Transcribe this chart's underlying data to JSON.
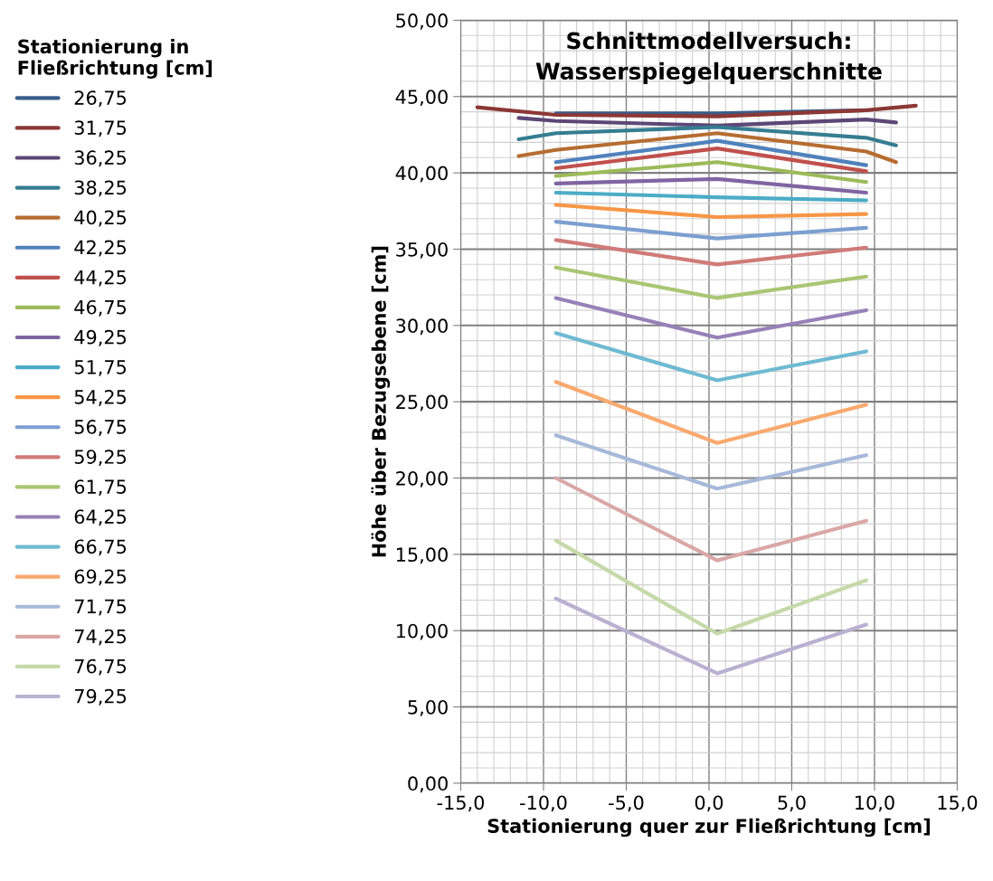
{
  "chart_data": {
    "type": "line",
    "title": "Schnittmodellversuch:\nWasserspiegelquerschnitte",
    "xlabel": "Stationierung quer zur Fließrichtung [cm]",
    "ylabel": "Höhe über Bezugsebene [cm]",
    "legend_title": "Stationierung in\nFließrichtung [cm]",
    "legend": "left",
    "grid": true,
    "marker": "none",
    "line_style": "solid",
    "xlim": [
      -15,
      15
    ],
    "ylim": [
      0,
      50
    ],
    "xticks": [
      {
        "value": -15,
        "label": "-15,0"
      },
      {
        "value": -10,
        "label": "-10,0"
      },
      {
        "value": -5,
        "label": "-5,0"
      },
      {
        "value": 0,
        "label": "0,0"
      },
      {
        "value": 5,
        "label": "5,0"
      },
      {
        "value": 10,
        "label": "10,0"
      },
      {
        "value": 15,
        "label": "15,0"
      }
    ],
    "yticks": [
      {
        "value": 0,
        "label": "0,00"
      },
      {
        "value": 5,
        "label": "5,00"
      },
      {
        "value": 10,
        "label": "10,00"
      },
      {
        "value": 15,
        "label": "15,00"
      },
      {
        "value": 20,
        "label": "20,00"
      },
      {
        "value": 25,
        "label": "25,00"
      },
      {
        "value": 30,
        "label": "30,00"
      },
      {
        "value": 35,
        "label": "35,00"
      },
      {
        "value": 40,
        "label": "40,00"
      },
      {
        "value": 45,
        "label": "45,00"
      },
      {
        "value": 50,
        "label": "50,00"
      }
    ],
    "x": [
      -9.25,
      0.5,
      9.5
    ],
    "series": [
      {
        "name": "26,75",
        "color": "#385d8a",
        "values": [
          43.9,
          43.9,
          44.1
        ]
      },
      {
        "name": "31,75",
        "color": "#8c3836",
        "x": [
          -14,
          -9.25,
          0.5,
          9.5,
          12.5
        ],
        "values": [
          44.3,
          43.8,
          43.7,
          44.1,
          44.4
        ]
      },
      {
        "name": "36,25",
        "color": "#5c4776",
        "x": [
          -11.5,
          -9.25,
          0.5,
          9.5,
          11.3
        ],
        "values": [
          43.6,
          43.4,
          43.1,
          43.5,
          43.3
        ]
      },
      {
        "name": "38,25",
        "color": "#357d91",
        "x": [
          -11.5,
          -9.25,
          0.5,
          9.5,
          11.3
        ],
        "values": [
          42.2,
          42.6,
          43.0,
          42.3,
          41.8
        ]
      },
      {
        "name": "40,25",
        "color": "#b66d31",
        "x": [
          -11.5,
          -9.25,
          0.5,
          9.5,
          11.3
        ],
        "values": [
          41.1,
          41.5,
          42.6,
          41.4,
          40.7
        ]
      },
      {
        "name": "42,25",
        "color": "#4f81bd",
        "values": [
          40.7,
          42.1,
          40.5
        ]
      },
      {
        "name": "44,25",
        "color": "#c0504d",
        "values": [
          40.3,
          41.6,
          40.1
        ]
      },
      {
        "name": "46,75",
        "color": "#9bbb59",
        "values": [
          39.8,
          40.7,
          39.4
        ]
      },
      {
        "name": "49,25",
        "color": "#8064a2",
        "values": [
          39.3,
          39.6,
          38.7
        ]
      },
      {
        "name": "51,75",
        "color": "#4bacc6",
        "values": [
          38.7,
          38.4,
          38.2
        ]
      },
      {
        "name": "54,25",
        "color": "#f79646",
        "values": [
          37.9,
          37.1,
          37.3
        ]
      },
      {
        "name": "56,75",
        "color": "#7c9fd0",
        "values": [
          36.8,
          35.7,
          36.4
        ]
      },
      {
        "name": "59,25",
        "color": "#d07b79",
        "values": [
          35.6,
          34.0,
          35.1
        ]
      },
      {
        "name": "61,75",
        "color": "#a9c673",
        "values": [
          33.8,
          31.8,
          33.2
        ]
      },
      {
        "name": "64,25",
        "color": "#9781b8",
        "values": [
          31.8,
          29.2,
          31.0
        ]
      },
      {
        "name": "66,75",
        "color": "#6fbad2",
        "values": [
          29.5,
          26.4,
          28.3
        ]
      },
      {
        "name": "69,25",
        "color": "#f9a96e",
        "values": [
          26.3,
          22.3,
          24.8
        ]
      },
      {
        "name": "71,75",
        "color": "#a7b9d9",
        "values": [
          22.8,
          19.3,
          21.5
        ]
      },
      {
        "name": "74,25",
        "color": "#d9a7a6",
        "values": [
          20.0,
          14.6,
          17.2
        ]
      },
      {
        "name": "76,75",
        "color": "#c5d9a9",
        "values": [
          15.9,
          9.8,
          13.3
        ]
      },
      {
        "name": "79,25",
        "color": "#b9b1d1",
        "values": [
          12.1,
          7.2,
          10.4
        ]
      }
    ]
  }
}
